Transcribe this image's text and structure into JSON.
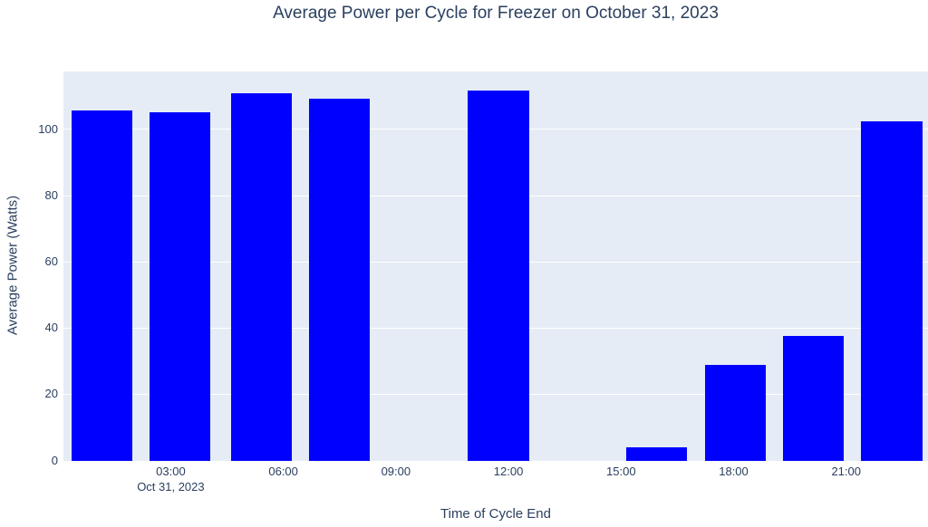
{
  "title": "Average Power per Cycle for Freezer on October 31, 2023",
  "colors": {
    "bar": "#0000ff",
    "plot_background": "#e5ecf6",
    "gridline": "#ffffff",
    "text": "#2a3f5f",
    "page_background": "#ffffff"
  },
  "chart_data": {
    "type": "bar",
    "title": "Average Power per Cycle for Freezer on October 31, 2023",
    "xlabel": "Time of Cycle End",
    "ylabel": "Average Power (Watts)",
    "x_date": "Oct 31, 2023",
    "bars": [
      {
        "time": "01:10",
        "hour": 1.17,
        "value": 105.8
      },
      {
        "time": "03:15",
        "hour": 3.24,
        "value": 105.3
      },
      {
        "time": "05:25",
        "hour": 5.42,
        "value": 110.9
      },
      {
        "time": "07:30",
        "hour": 7.49,
        "value": 109.2
      },
      {
        "time": "11:45",
        "hour": 11.73,
        "value": 111.8
      },
      {
        "time": "15:57",
        "hour": 15.95,
        "value": 3.9
      },
      {
        "time": "18:03",
        "hour": 18.05,
        "value": 28.8
      },
      {
        "time": "20:07",
        "hour": 20.12,
        "value": 37.6
      },
      {
        "time": "22:13",
        "hour": 22.21,
        "value": 102.5
      }
    ],
    "bar_width_hours": 1.63,
    "xticks": [
      {
        "hour": 3,
        "label": "03:00",
        "sub": "Oct 31, 2023"
      },
      {
        "hour": 6,
        "label": "06:00",
        "sub": ""
      },
      {
        "hour": 9,
        "label": "09:00",
        "sub": ""
      },
      {
        "hour": 12,
        "label": "12:00",
        "sub": ""
      },
      {
        "hour": 15,
        "label": "15:00",
        "sub": ""
      },
      {
        "hour": 18,
        "label": "18:00",
        "sub": ""
      },
      {
        "hour": 21,
        "label": "21:00",
        "sub": ""
      }
    ],
    "yticks": [
      0,
      20,
      40,
      60,
      80,
      100
    ],
    "xlim_hours": [
      0.14,
      23.18
    ],
    "ylim": [
      0,
      117.5
    ],
    "grid": true,
    "legend": false
  }
}
